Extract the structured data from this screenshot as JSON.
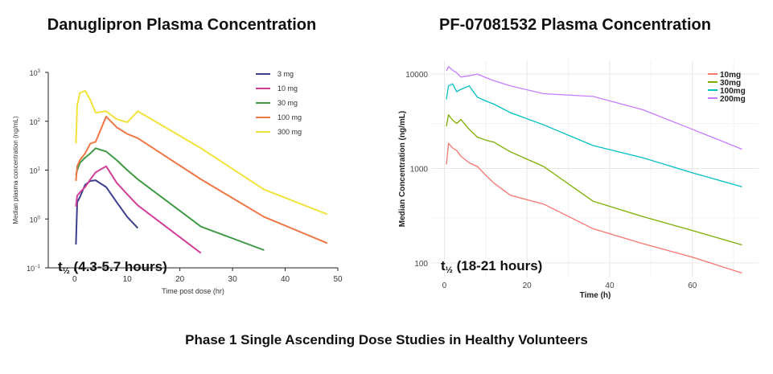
{
  "chart_data": [
    {
      "type": "line",
      "title": "Danuglipron Plasma Concentration",
      "xlabel": "Time post dose (hr)",
      "ylabel": "Median plasma concentration (ng/mL)",
      "log_y": true,
      "xlim": [
        -5,
        50
      ],
      "ylim": [
        0.1,
        1000
      ],
      "xticks": [
        0,
        10,
        20,
        30,
        40,
        50
      ],
      "yticks": [
        {
          "value": 0.1,
          "base": "10",
          "exp": "−1"
        },
        {
          "value": 1,
          "base": "10",
          "exp": "0"
        },
        {
          "value": 10,
          "base": "10",
          "exp": "1"
        },
        {
          "value": 100,
          "base": "10",
          "exp": "2"
        },
        {
          "value": 1000,
          "base": "10",
          "exp": "3"
        }
      ],
      "grid": false,
      "legend_position": "top-right",
      "annotation": {
        "t": "t",
        "sub": "½",
        "text": " (4.3-5.7 hours)"
      },
      "series": [
        {
          "name": "3 mg",
          "color": "#3c3f8c",
          "x": [
            0.25,
            0.5,
            1,
            2,
            3,
            4,
            6,
            8,
            10,
            12
          ],
          "y": [
            0.3,
            2.2,
            2.8,
            5.0,
            6.0,
            6.2,
            4.5,
            2.2,
            1.1,
            0.65
          ]
        },
        {
          "name": "10 mg",
          "color": "#d23f98",
          "x": [
            0.25,
            0.5,
            1,
            2,
            3,
            4,
            6,
            8,
            10,
            12,
            24
          ],
          "y": [
            1.8,
            3.0,
            3.5,
            4.5,
            6.5,
            9.0,
            12.0,
            5.5,
            3.2,
            1.9,
            0.2
          ]
        },
        {
          "name": "30 mg",
          "color": "#3f9a45",
          "x": [
            0.25,
            0.5,
            1,
            2,
            3,
            4,
            6,
            8,
            10,
            12,
            24,
            36
          ],
          "y": [
            8.0,
            10.0,
            14.0,
            18.0,
            22.0,
            28.0,
            24.0,
            16.0,
            10.0,
            6.5,
            0.7,
            0.23
          ]
        },
        {
          "name": "100 mg",
          "color": "#ee7745",
          "x": [
            0.25,
            0.5,
            1,
            2,
            3,
            4,
            6,
            8,
            10,
            12,
            24,
            36,
            48
          ],
          "y": [
            6.0,
            12.0,
            16.0,
            22.0,
            35.0,
            38.0,
            125.0,
            75.0,
            55.0,
            45.0,
            6.5,
            1.1,
            0.32
          ]
        },
        {
          "name": "300 mg",
          "color": "#f2e33c",
          "x": [
            0.25,
            0.5,
            1,
            2,
            3,
            4,
            6,
            8,
            10,
            12,
            24,
            36,
            48
          ],
          "y": [
            35.0,
            210.0,
            380.0,
            420.0,
            270.0,
            150.0,
            160.0,
            110.0,
            95.0,
            160.0,
            28.0,
            4.0,
            1.25
          ]
        }
      ]
    },
    {
      "type": "line",
      "title": "PF-07081532 Plasma Concentration",
      "xlabel": "Time (h)",
      "ylabel": "Median Concentration (ng/mL)",
      "log_y": true,
      "xlim": [
        -3,
        76
      ],
      "ylim": [
        70,
        14000
      ],
      "xticks": [
        0,
        20,
        40,
        60
      ],
      "yticks": [
        {
          "value": 100,
          "label": "100"
        },
        {
          "value": 1000,
          "label": "1000"
        },
        {
          "value": 10000,
          "label": "10000"
        }
      ],
      "grid": true,
      "legend_position": "top-right",
      "annotation": {
        "t": "t",
        "sub": "½",
        "text": " (18-21  hours)"
      },
      "series": [
        {
          "name": "10mg",
          "color": "#f8766d",
          "x": [
            0.5,
            1,
            2,
            3,
            4,
            6,
            8,
            10,
            12,
            16,
            24,
            36,
            48,
            60,
            72
          ],
          "y": [
            1100,
            1850,
            1650,
            1550,
            1350,
            1150,
            1050,
            850,
            700,
            520,
            420,
            230,
            160,
            115,
            78
          ]
        },
        {
          "name": "30mg",
          "color": "#7cae00",
          "x": [
            0.5,
            1,
            2,
            3,
            4,
            6,
            8,
            10,
            12,
            16,
            24,
            36,
            48,
            60,
            72
          ],
          "y": [
            2800,
            3700,
            3250,
            3000,
            3300,
            2600,
            2150,
            2000,
            1900,
            1500,
            1050,
            450,
            310,
            220,
            155
          ]
        },
        {
          "name": "100mg",
          "color": "#00bfc4",
          "x": [
            0.5,
            1,
            2,
            3,
            4,
            6,
            8,
            10,
            12,
            16,
            24,
            36,
            48,
            60,
            72
          ],
          "y": [
            5400,
            7500,
            7900,
            6500,
            6900,
            7500,
            5700,
            5200,
            4800,
            3900,
            2900,
            1750,
            1300,
            900,
            640
          ]
        },
        {
          "name": "200mg",
          "color": "#c77cff",
          "x": [
            0.5,
            1,
            2,
            3,
            4,
            6,
            8,
            10,
            12,
            16,
            24,
            36,
            48,
            60,
            72
          ],
          "y": [
            10800,
            12000,
            11000,
            10300,
            9300,
            9600,
            10000,
            9200,
            8500,
            7500,
            6200,
            5800,
            4200,
            2600,
            1600
          ]
        }
      ]
    }
  ],
  "footer": "Phase 1 Single Ascending Dose Studies in Healthy Volunteers"
}
